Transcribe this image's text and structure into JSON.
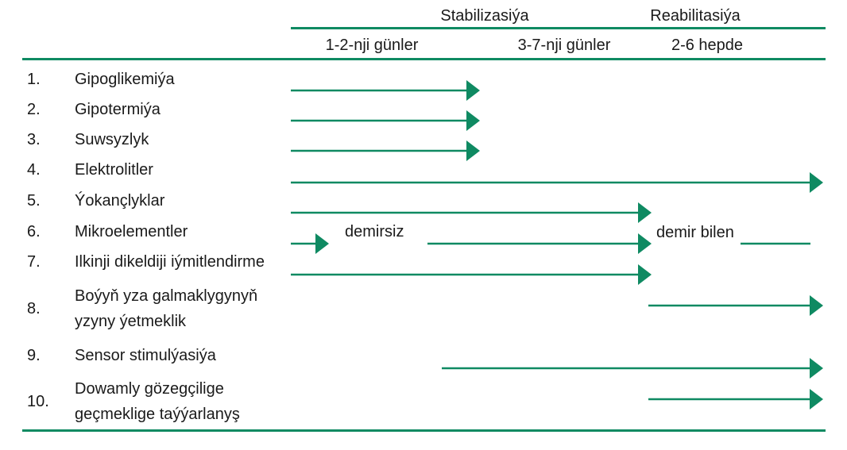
{
  "colors": {
    "accent": "#0f8a62",
    "text": "#1a1a1a"
  },
  "header": {
    "phase_stabilization": "Stabilizasiýa",
    "phase_rehabilitation": "Reabilitasiýa",
    "period_1": "1-2-nji günler",
    "period_2": "3-7-nji günler",
    "period_3": "2-6 hepde"
  },
  "rows": [
    {
      "num": "1.",
      "lines": [
        "Gipoglikemiýa"
      ]
    },
    {
      "num": "2.",
      "lines": [
        "Gipotermiýa"
      ]
    },
    {
      "num": "3.",
      "lines": [
        "Suwsyzlyk"
      ]
    },
    {
      "num": "4.",
      "lines": [
        "Elektrolitler"
      ]
    },
    {
      "num": "5.",
      "lines": [
        "Ýokançlyklar"
      ]
    },
    {
      "num": "6.",
      "lines": [
        "Mikroelementler"
      ]
    },
    {
      "num": "7.",
      "lines": [
        "Ilkinji dikeldiji iýmitlendirme"
      ]
    },
    {
      "num": "8.",
      "lines": [
        "Boýyň yza galmaklygynyň",
        "yzyny ýetmeklik"
      ]
    },
    {
      "num": "9.",
      "lines": [
        "Sensor stimulýasiýa"
      ]
    },
    {
      "num": "10.",
      "lines": [
        "Dowamly gözegçilige",
        "geçmeklige taýýarlanyş"
      ]
    }
  ],
  "annotations": {
    "without_iron": "demirsiz",
    "with_iron": "demir bilen"
  }
}
